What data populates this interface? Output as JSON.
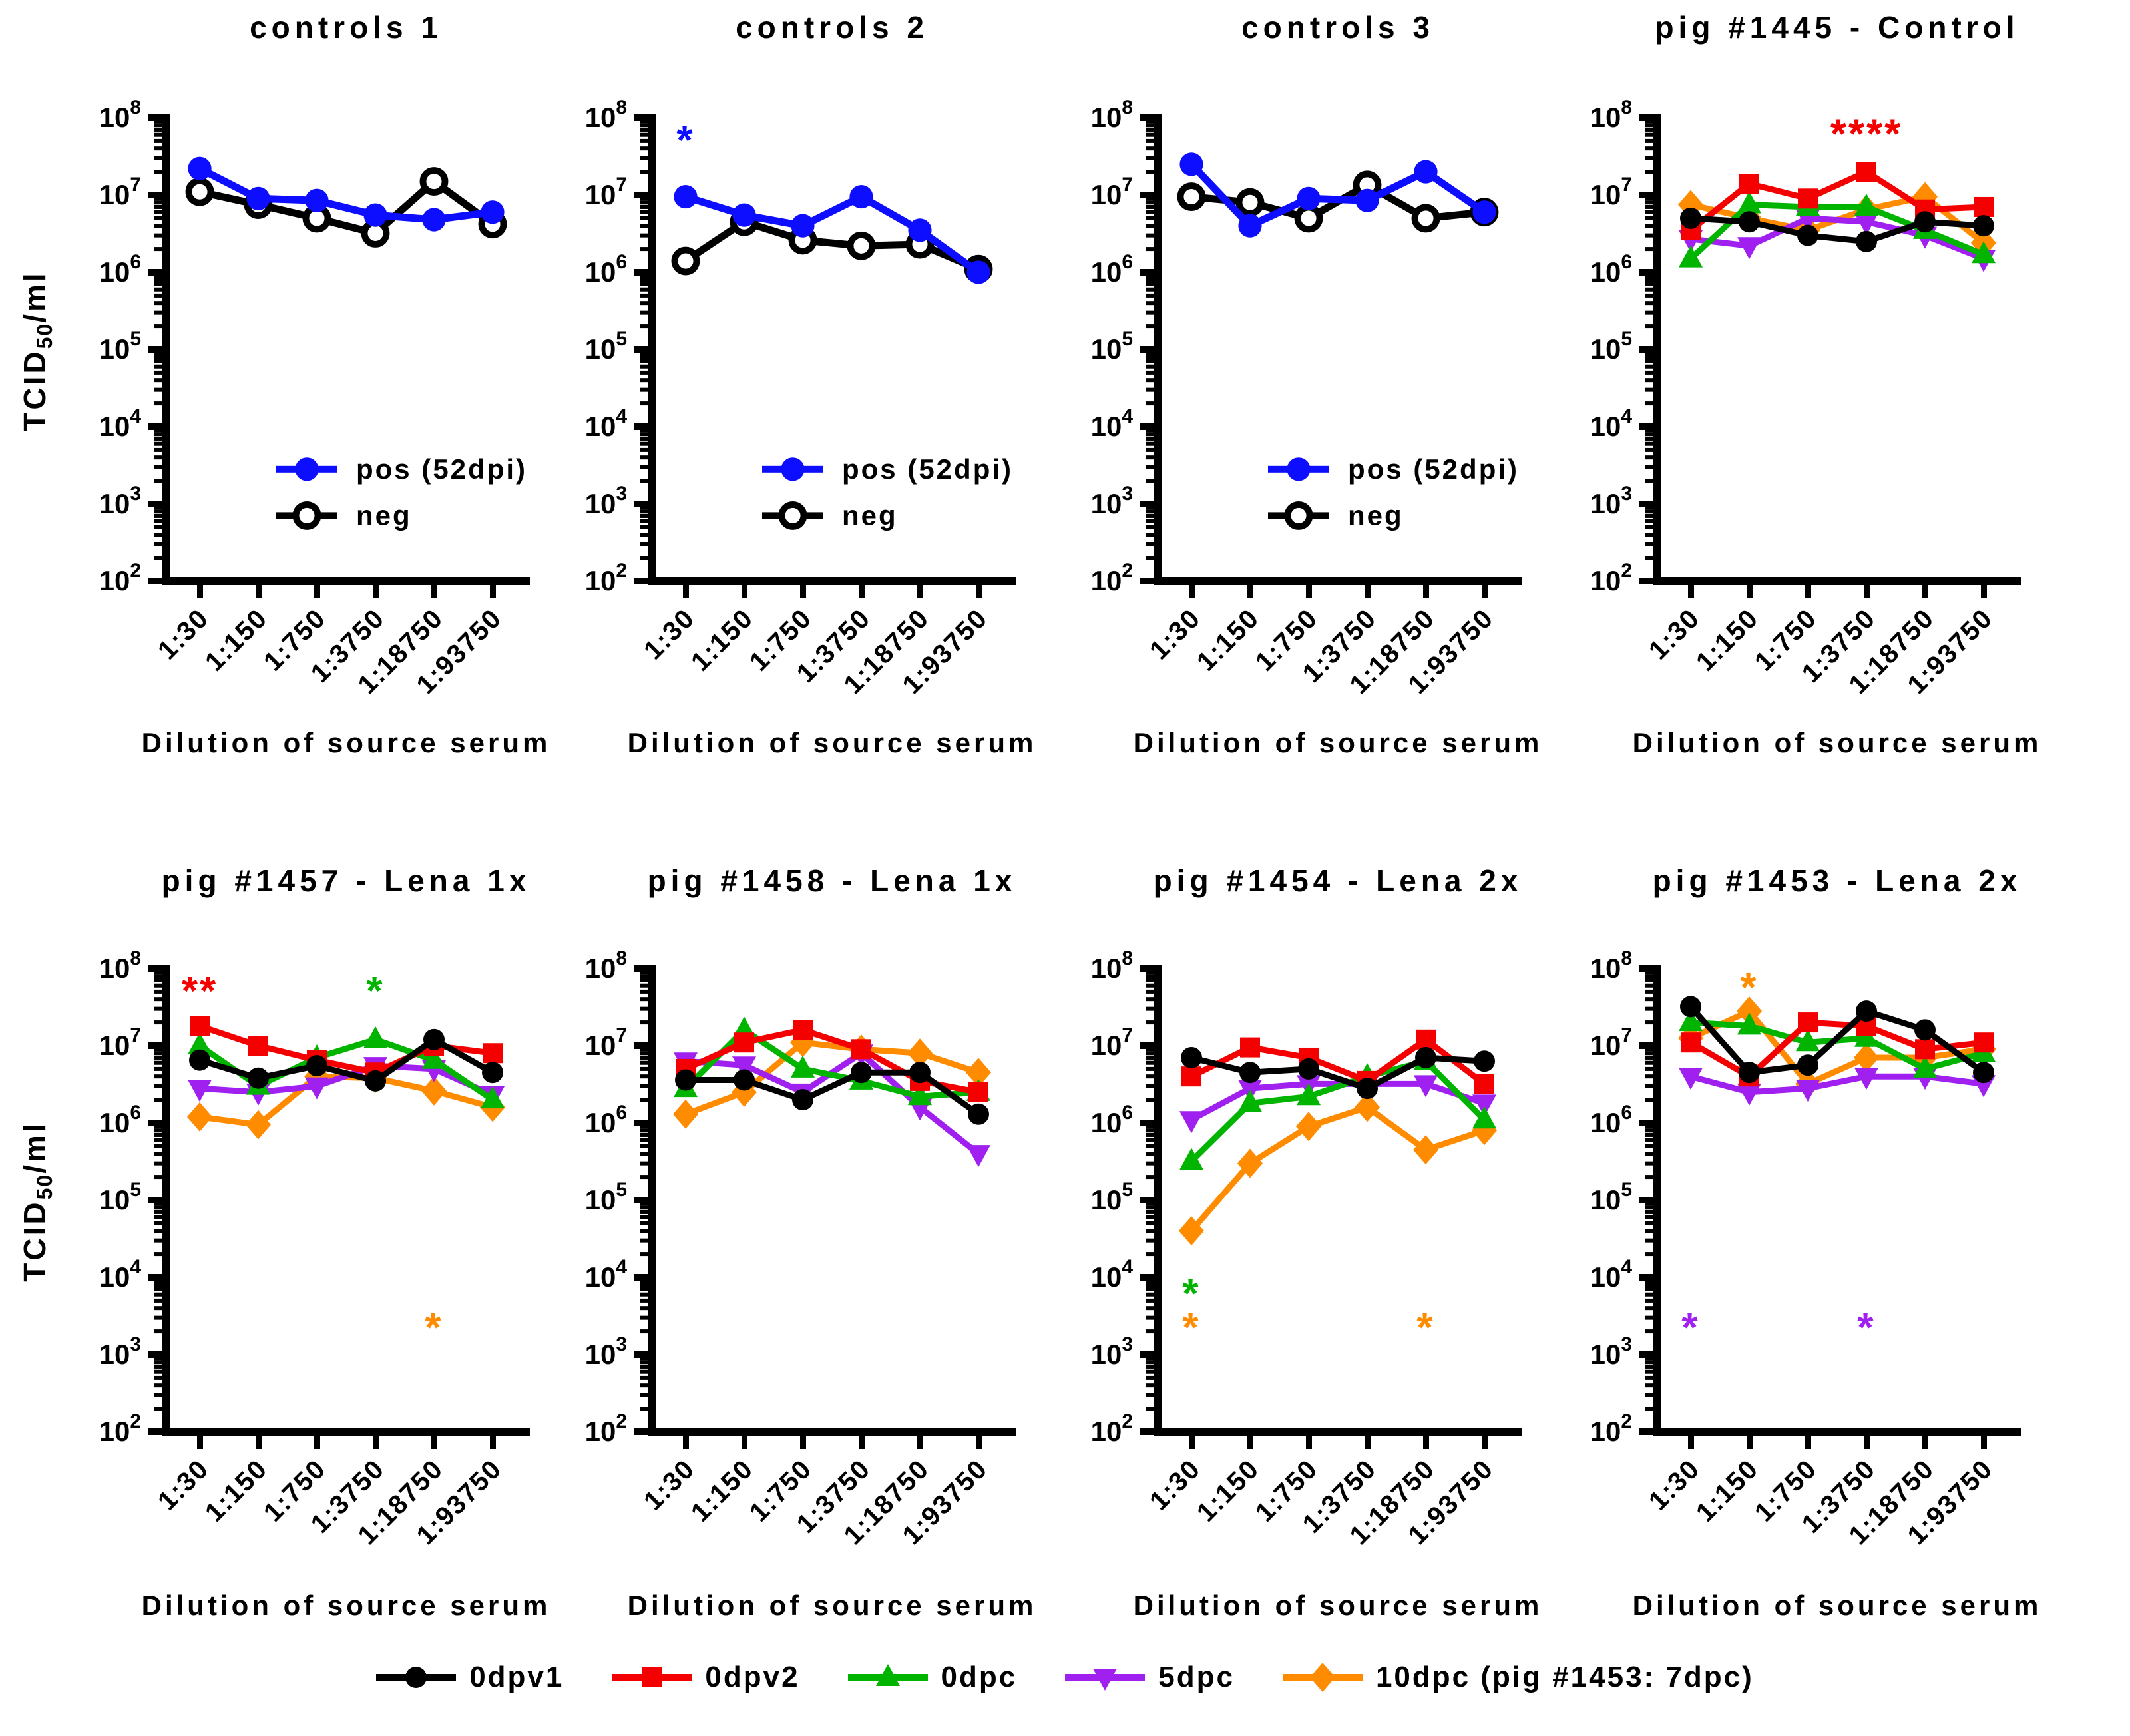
{
  "figure": {
    "x_axis_label": "Dilution of source serum",
    "y_label_main": "TCID",
    "y_label_sub": "50",
    "y_label_unit": "/ml"
  },
  "colors": {
    "black": "#000000",
    "red": "#f40000",
    "green": "#00b400",
    "purple": "#a020f0",
    "orange": "#ff8c00",
    "blue": "#0d0dff"
  },
  "bottom_legend": [
    {
      "label": "0dpv1",
      "color": "black",
      "marker": "circle"
    },
    {
      "label": "0dpv2",
      "color": "red",
      "marker": "square"
    },
    {
      "label": "0dpc",
      "color": "green",
      "marker": "triangle-up"
    },
    {
      "label": "5dpc",
      "color": "purple",
      "marker": "triangle-down"
    },
    {
      "label": "10dpc (pig #1453: 7dpc)",
      "color": "orange",
      "marker": "diamond"
    }
  ],
  "chart_data": {
    "type": "line",
    "y_scale": "log10",
    "ylim": [
      100,
      100000000
    ],
    "y_tick_exponents": [
      2,
      3,
      4,
      5,
      6,
      7,
      8
    ],
    "categories": [
      "1:30",
      "1:150",
      "1:750",
      "1:3750",
      "1:18750",
      "1:93750"
    ],
    "xlabel": "Dilution of source serum",
    "ylabel": "TCID50/ml",
    "grid": false,
    "panels": [
      {
        "title": "controls 1",
        "inset_legend": true,
        "series": [
          {
            "name": "pos (52dpi)",
            "color": "blue",
            "marker": "circle",
            "values": [
              22000000,
              9000000,
              8500000,
              5500000,
              4800000,
              6000000
            ]
          },
          {
            "name": "neg",
            "color": "black",
            "marker": "open-circle",
            "values": [
              11000000,
              7500000,
              5000000,
              3200000,
              15000000,
              4200000
            ]
          }
        ],
        "annotations": []
      },
      {
        "title": "controls 2",
        "inset_legend": true,
        "series": [
          {
            "name": "pos (52dpi)",
            "color": "blue",
            "marker": "circle",
            "values": [
              9500000,
              5500000,
              4000000,
              9500000,
              3500000,
              1000000
            ]
          },
          {
            "name": "neg",
            "color": "black",
            "marker": "open-circle",
            "values": [
              1400000,
              4500000,
              2600000,
              2200000,
              2300000,
              1100000
            ]
          }
        ],
        "annotations": [
          {
            "text": "*",
            "color": "blue",
            "category": "1:30",
            "value": 50000000
          }
        ]
      },
      {
        "title": "controls 3",
        "inset_legend": true,
        "series": [
          {
            "name": "pos (52dpi)",
            "color": "blue",
            "marker": "circle",
            "values": [
              25000000,
              4000000,
              9000000,
              8500000,
              20000000,
              6000000
            ]
          },
          {
            "name": "neg",
            "color": "black",
            "marker": "open-circle",
            "values": [
              9500000,
              8000000,
              5000000,
              13500000,
              5000000,
              6000000
            ]
          }
        ],
        "annotations": []
      },
      {
        "title": "pig #1445 - Control",
        "inset_legend": false,
        "series": [
          {
            "name": "0dpv1",
            "color": "black",
            "marker": "circle",
            "values": [
              5000000,
              4500000,
              3000000,
              2500000,
              4500000,
              4000000
            ]
          },
          {
            "name": "0dpv2",
            "color": "red",
            "marker": "square",
            "values": [
              3500000,
              14000000,
              9000000,
              20000000,
              6500000,
              7000000
            ]
          },
          {
            "name": "0dpc",
            "color": "green",
            "marker": "triangle-up",
            "values": [
              1500000,
              7500000,
              7000000,
              7000000,
              3500000,
              1700000
            ]
          },
          {
            "name": "5dpc",
            "color": "purple",
            "marker": "triangle-down",
            "values": [
              2700000,
              2200000,
              5000000,
              4500000,
              3000000,
              1500000
            ]
          },
          {
            "name": "10dpc",
            "color": "orange",
            "marker": "diamond",
            "values": [
              7500000,
              5000000,
              3500000,
              6500000,
              9500000,
              2400000
            ]
          }
        ],
        "annotations": [
          {
            "text": "****",
            "color": "red",
            "category": "1:3750",
            "value": 60000000
          }
        ]
      },
      {
        "title": "pig #1457 - Lena 1x",
        "inset_legend": false,
        "series": [
          {
            "name": "0dpv1",
            "color": "black",
            "marker": "circle",
            "values": [
              6500000,
              3800000,
              5500000,
              3500000,
              12000000,
              4500000
            ]
          },
          {
            "name": "0dpv2",
            "color": "red",
            "marker": "square",
            "values": [
              18000000,
              10000000,
              6500000,
              4500000,
              10000000,
              8000000
            ]
          },
          {
            "name": "0dpc",
            "color": "green",
            "marker": "triangle-up",
            "values": [
              10000000,
              3000000,
              7000000,
              12000000,
              6500000,
              2000000
            ]
          },
          {
            "name": "5dpc",
            "color": "purple",
            "marker": "triangle-down",
            "values": [
              2800000,
              2500000,
              3000000,
              5500000,
              5000000,
              2300000
            ]
          },
          {
            "name": "10dpc",
            "color": "orange",
            "marker": "diamond",
            "values": [
              1200000,
              950000,
              4000000,
              3800000,
              2600000,
              1600000
            ]
          }
        ],
        "annotations": [
          {
            "text": "**",
            "color": "red",
            "category": "1:30",
            "value": 50000000
          },
          {
            "text": "*",
            "color": "green",
            "category": "1:3750",
            "value": 50000000
          },
          {
            "text": "*",
            "color": "orange",
            "category": "1:18750",
            "value": 2200
          }
        ]
      },
      {
        "title": "pig #1458 - Lena 1x",
        "inset_legend": false,
        "series": [
          {
            "name": "0dpv1",
            "color": "black",
            "marker": "circle",
            "values": [
              3600000,
              3600000,
              2000000,
              4500000,
              4500000,
              1300000
            ]
          },
          {
            "name": "0dpv2",
            "color": "red",
            "marker": "square",
            "values": [
              5000000,
              11000000,
              16000000,
              9000000,
              3500000,
              2500000
            ]
          },
          {
            "name": "0dpc",
            "color": "green",
            "marker": "triangle-up",
            "values": [
              2800000,
              16000000,
              5000000,
              3500000,
              2200000,
              2500000
            ]
          },
          {
            "name": "5dpc",
            "color": "purple",
            "marker": "triangle-down",
            "values": [
              6300000,
              5600000,
              2500000,
              8000000,
              1600000,
              400000
            ]
          },
          {
            "name": "10dpc",
            "color": "orange",
            "marker": "diamond",
            "values": [
              1300000,
              2500000,
              11000000,
              9000000,
              8000000,
              4500000
            ]
          }
        ],
        "annotations": []
      },
      {
        "title": "pig #1454 - Lena 2x",
        "inset_legend": false,
        "series": [
          {
            "name": "0dpv1",
            "color": "black",
            "marker": "circle",
            "values": [
              7000000,
              4500000,
              5000000,
              2800000,
              7000000,
              6300000
            ]
          },
          {
            "name": "0dpv2",
            "color": "red",
            "marker": "square",
            "values": [
              4000000,
              9500000,
              7000000,
              3500000,
              12000000,
              3200000
            ]
          },
          {
            "name": "0dpc",
            "color": "green",
            "marker": "triangle-up",
            "values": [
              320000,
              1800000,
              2200000,
              4000000,
              6300000,
              1100000
            ]
          },
          {
            "name": "5dpc",
            "color": "purple",
            "marker": "triangle-down",
            "values": [
              1100000,
              2800000,
              3200000,
              3200000,
              3200000,
              1800000
            ]
          },
          {
            "name": "10dpc",
            "color": "orange",
            "marker": "diamond",
            "values": [
              40000,
              300000,
              900000,
              1600000,
              450000,
              800000
            ]
          }
        ],
        "annotations": [
          {
            "text": "*",
            "color": "green",
            "category": "1:30",
            "value": 6000
          },
          {
            "text": "*",
            "color": "orange",
            "category": "1:30",
            "value": 2200
          },
          {
            "text": "*",
            "color": "orange",
            "category": "1:18750",
            "value": 2200
          }
        ]
      },
      {
        "title": "pig #1453 - Lena 2x",
        "inset_legend": false,
        "series": [
          {
            "name": "0dpv1",
            "color": "black",
            "marker": "circle",
            "values": [
              32000000,
              4500000,
              5600000,
              28000000,
              16000000,
              4500000
            ]
          },
          {
            "name": "0dpv2",
            "color": "red",
            "marker": "square",
            "values": [
              11000000,
              4000000,
              20000000,
              18000000,
              9000000,
              11000000
            ]
          },
          {
            "name": "0dpc",
            "color": "green",
            "marker": "triangle-up",
            "values": [
              20000000,
              18000000,
              11000000,
              12500000,
              5000000,
              8000000
            ]
          },
          {
            "name": "5dpc",
            "color": "purple",
            "marker": "triangle-down",
            "values": [
              4000000,
              2500000,
              2800000,
              4000000,
              4000000,
              3200000
            ]
          },
          {
            "name": "10dpc",
            "color": "orange",
            "marker": "diamond",
            "values": [
              12500000,
              28000000,
              3200000,
              7000000,
              7000000,
              9000000
            ]
          }
        ],
        "annotations": [
          {
            "text": "*",
            "color": "orange",
            "category": "1:150",
            "value": 55000000
          },
          {
            "text": "*",
            "color": "purple",
            "category": "1:30",
            "value": 2200
          },
          {
            "text": "*",
            "color": "purple",
            "category": "1:3750",
            "value": 2200
          }
        ]
      }
    ]
  }
}
